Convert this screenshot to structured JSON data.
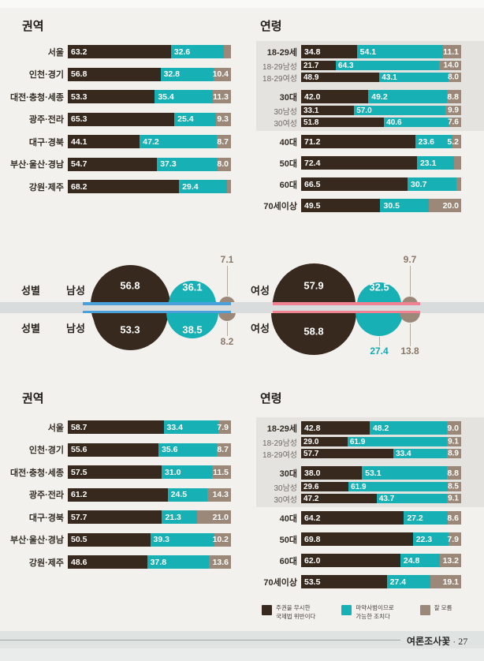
{
  "page": {
    "background": "#f2f1ee",
    "footer": {
      "brand": "여론조사꽃",
      "separator": "·",
      "page_number": "27"
    }
  },
  "colors": {
    "dark_brown": "#38291e",
    "teal": "#17b0b5",
    "taupe": "#9b8878",
    "highlight_box": "#e5e3e0",
    "axis_band": "#d8dcdc",
    "male_line": "#4aa0da",
    "female_line": "#ef8192"
  },
  "legend": [
    {
      "line1": "주권을 무시한",
      "line2": "국제법 위반이다",
      "color": "#38291e"
    },
    {
      "line1": "마약사범이므로",
      "line2": "가능한 조치다",
      "color": "#17b0b5"
    },
    {
      "line1": "잘 모름",
      "line2": "",
      "color": "#9b8878"
    }
  ],
  "chart_data": [
    {
      "id": "region-top",
      "type": "stacked-bar-h",
      "title": "권역",
      "unit": "%",
      "xlim": [
        0,
        100
      ],
      "series": [
        "주권을 무시한 국제법 위반이다",
        "마약사범이므로 가능한 조치다",
        "잘 모름"
      ],
      "groups": [
        {
          "highlight": false,
          "rows": [
            {
              "label": "서울",
              "emphasis": "main",
              "values": [
                63.2,
                32.6,
                null
              ]
            },
            {
              "label": "인천·경기",
              "emphasis": "main",
              "values": [
                56.8,
                32.8,
                10.4
              ]
            },
            {
              "label": "대전·충청·세종",
              "emphasis": "main",
              "values": [
                53.3,
                35.4,
                11.3
              ]
            },
            {
              "label": "광주·전라",
              "emphasis": "main",
              "values": [
                65.3,
                25.4,
                9.3
              ]
            },
            {
              "label": "대구·경북",
              "emphasis": "main",
              "values": [
                44.1,
                47.2,
                8.7
              ]
            },
            {
              "label": "부산·울산·경남",
              "emphasis": "main",
              "values": [
                54.7,
                37.3,
                8.0
              ]
            },
            {
              "label": "강원·제주",
              "emphasis": "main",
              "values": [
                68.2,
                29.4,
                null
              ]
            }
          ]
        }
      ]
    },
    {
      "id": "age-top",
      "type": "stacked-bar-h",
      "title": "연령",
      "unit": "%",
      "xlim": [
        0,
        100
      ],
      "series": [
        "주권을 무시한 국제법 위반이다",
        "마약사범이므로 가능한 조치다",
        "잘 모름"
      ],
      "groups": [
        {
          "highlight": true,
          "rows": [
            {
              "label": "18-29세",
              "emphasis": "main",
              "values": [
                34.8,
                54.1,
                11.1
              ]
            },
            {
              "label": "18-29남성",
              "emphasis": "sub",
              "values": [
                21.7,
                64.3,
                14.0
              ]
            },
            {
              "label": "18-29여성",
              "emphasis": "sub",
              "values": [
                48.9,
                43.1,
                8.0
              ]
            }
          ]
        },
        {
          "highlight": true,
          "rows": [
            {
              "label": "30대",
              "emphasis": "main",
              "values": [
                42.0,
                49.2,
                8.8
              ]
            },
            {
              "label": "30남성",
              "emphasis": "sub",
              "values": [
                33.1,
                57.0,
                9.9
              ]
            },
            {
              "label": "30여성",
              "emphasis": "sub",
              "values": [
                51.8,
                40.6,
                7.6
              ]
            }
          ]
        },
        {
          "highlight": false,
          "rows": [
            {
              "label": "40대",
              "emphasis": "main",
              "values": [
                71.2,
                23.6,
                5.2
              ]
            }
          ]
        },
        {
          "highlight": false,
          "rows": [
            {
              "label": "50대",
              "emphasis": "main",
              "values": [
                72.4,
                23.1,
                null
              ]
            }
          ]
        },
        {
          "highlight": false,
          "rows": [
            {
              "label": "60대",
              "emphasis": "main",
              "values": [
                66.5,
                30.7,
                null
              ]
            }
          ]
        },
        {
          "highlight": false,
          "rows": [
            {
              "label": "70세이상",
              "emphasis": "main",
              "values": [
                49.5,
                30.5,
                20.0
              ]
            }
          ]
        }
      ]
    },
    {
      "id": "gender",
      "type": "bubble",
      "section_label": "성별",
      "series": [
        "주권을 무시한 국제법 위반이다",
        "마약사범이므로 가능한 조치다",
        "잘 모름"
      ],
      "male": {
        "label": "남성",
        "line_color": "#4aa0da",
        "rows": [
          {
            "values": [
              56.8,
              36.1,
              7.1
            ]
          },
          {
            "values": [
              53.3,
              38.5,
              8.2
            ]
          }
        ]
      },
      "female": {
        "label": "여성",
        "line_color": "#ef8192",
        "rows": [
          {
            "values": [
              57.9,
              32.5,
              9.7
            ]
          },
          {
            "values": [
              58.8,
              27.4,
              13.8
            ]
          }
        ]
      }
    },
    {
      "id": "region-bottom",
      "type": "stacked-bar-h",
      "title": "권역",
      "unit": "%",
      "xlim": [
        0,
        100
      ],
      "series": [
        "주권을 무시한 국제법 위반이다",
        "마약사범이므로 가능한 조치다",
        "잘 모름"
      ],
      "groups": [
        {
          "highlight": false,
          "rows": [
            {
              "label": "서울",
              "emphasis": "main",
              "values": [
                58.7,
                33.4,
                7.9
              ]
            },
            {
              "label": "인천·경기",
              "emphasis": "main",
              "values": [
                55.6,
                35.6,
                8.7
              ]
            },
            {
              "label": "대전·충청·세종",
              "emphasis": "main",
              "values": [
                57.5,
                31.0,
                11.5
              ]
            },
            {
              "label": "광주·전라",
              "emphasis": "main",
              "values": [
                61.2,
                24.5,
                14.3
              ]
            },
            {
              "label": "대구·경북",
              "emphasis": "main",
              "values": [
                57.7,
                21.3,
                21.0
              ]
            },
            {
              "label": "부산·울산·경남",
              "emphasis": "main",
              "values": [
                50.5,
                39.3,
                10.2
              ]
            },
            {
              "label": "강원·제주",
              "emphasis": "main",
              "values": [
                48.6,
                37.8,
                13.6
              ]
            }
          ]
        }
      ]
    },
    {
      "id": "age-bottom",
      "type": "stacked-bar-h",
      "title": "연령",
      "unit": "%",
      "xlim": [
        0,
        100
      ],
      "series": [
        "주권을 무시한 국제법 위반이다",
        "마약사범이므로 가능한 조치다",
        "잘 모름"
      ],
      "groups": [
        {
          "highlight": true,
          "rows": [
            {
              "label": "18-29세",
              "emphasis": "main",
              "values": [
                42.8,
                48.2,
                9.0
              ]
            },
            {
              "label": "18-29남성",
              "emphasis": "sub",
              "values": [
                29.0,
                61.9,
                9.1
              ]
            },
            {
              "label": "18-29여성",
              "emphasis": "sub",
              "values": [
                57.7,
                33.4,
                8.9
              ]
            }
          ]
        },
        {
          "highlight": true,
          "rows": [
            {
              "label": "30대",
              "emphasis": "main",
              "values": [
                38.0,
                53.1,
                8.8
              ]
            },
            {
              "label": "30남성",
              "emphasis": "sub",
              "values": [
                29.6,
                61.9,
                8.5
              ]
            },
            {
              "label": "30여성",
              "emphasis": "sub",
              "values": [
                47.2,
                43.7,
                9.1
              ]
            }
          ]
        },
        {
          "highlight": false,
          "rows": [
            {
              "label": "40대",
              "emphasis": "main",
              "values": [
                64.2,
                27.2,
                8.6
              ]
            }
          ]
        },
        {
          "highlight": false,
          "rows": [
            {
              "label": "50대",
              "emphasis": "main",
              "values": [
                69.8,
                22.3,
                7.9
              ]
            }
          ]
        },
        {
          "highlight": false,
          "rows": [
            {
              "label": "60대",
              "emphasis": "main",
              "values": [
                62.0,
                24.8,
                13.2
              ]
            }
          ]
        },
        {
          "highlight": false,
          "rows": [
            {
              "label": "70세이상",
              "emphasis": "main",
              "values": [
                53.5,
                27.4,
                19.1
              ]
            }
          ]
        }
      ]
    }
  ]
}
